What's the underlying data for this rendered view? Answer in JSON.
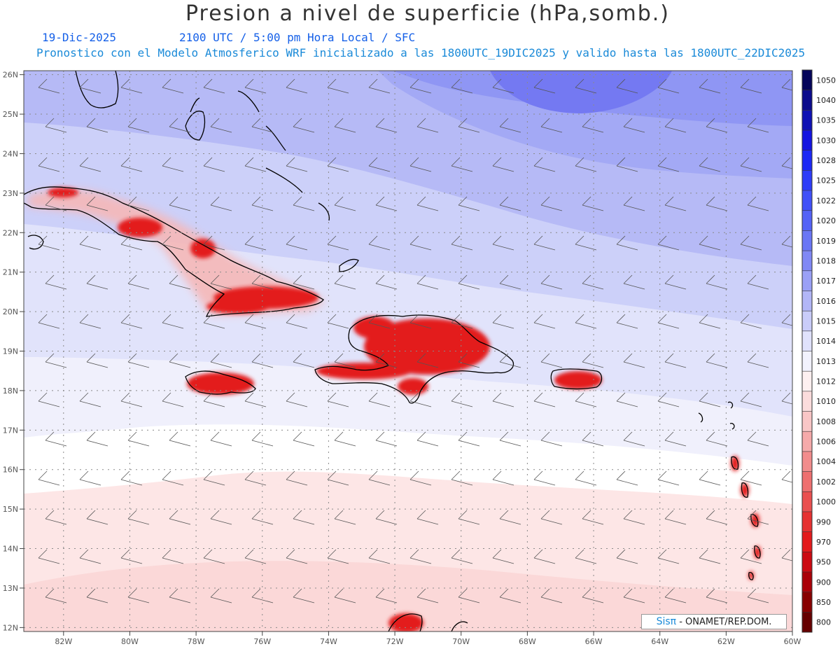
{
  "title": "Presion a nivel de superficie (hPa,somb.)",
  "subtitle": {
    "date": "19-Dic-2025",
    "time": "2100 UTC / 5:00 pm Hora Local / SFC",
    "model_info": "Pronostico con el Modelo Atmosferico WRF inicializado a las 1800UTC_19DIC2025 y valido hasta las  1800UTC_22DIC2025"
  },
  "colors": {
    "high": "#6a6ff8",
    "low": "#d81018",
    "land_high": "#e31a1c",
    "coast": "#000000",
    "grid": "#8a8a8a"
  },
  "map": {
    "lon_range": [
      -83.2,
      -60
    ],
    "lat_range": [
      11.9,
      26.1
    ],
    "lat_labels": [
      "26N",
      "25N",
      "24N",
      "23N",
      "22N",
      "21N",
      "20N",
      "19N",
      "18N",
      "17N",
      "16N",
      "15N",
      "14N",
      "13N",
      "12N"
    ],
    "lon_labels": [
      "82W",
      "80W",
      "78W",
      "76W",
      "74W",
      "72W",
      "70W",
      "68W",
      "66W",
      "64W",
      "62W",
      "60W"
    ]
  },
  "colorbar": {
    "levels": [
      "1050",
      "1040",
      "1035",
      "1030",
      "1028",
      "1025",
      "1022",
      "1020",
      "1019",
      "1018",
      "1017",
      "1016",
      "1015",
      "1014",
      "1013",
      "1012",
      "1010",
      "1008",
      "1006",
      "1004",
      "1002",
      "1000",
      "990",
      "970",
      "950",
      "900",
      "850",
      "800"
    ],
    "colors": [
      "#05055a",
      "#0b0b8c",
      "#0f12b4",
      "#1414e0",
      "#1c28f5",
      "#2e3cf8",
      "#4050f8",
      "#5462f6",
      "#6a76f5",
      "#8088f5",
      "#9aa0f6",
      "#b2b6f7",
      "#c9ccf9",
      "#e0e2fc",
      "#f2f2fd",
      "#fdf0f0",
      "#fbdcdc",
      "#f9c6c6",
      "#f6aaaa",
      "#f28c8c",
      "#ee7070",
      "#ea5050",
      "#e63232",
      "#e31a1c",
      "#cc0a12",
      "#aa0008",
      "#880000",
      "#660000"
    ]
  },
  "credit": {
    "logo": "Sisπ",
    "text": "- ONAMET/REP.DOM."
  }
}
